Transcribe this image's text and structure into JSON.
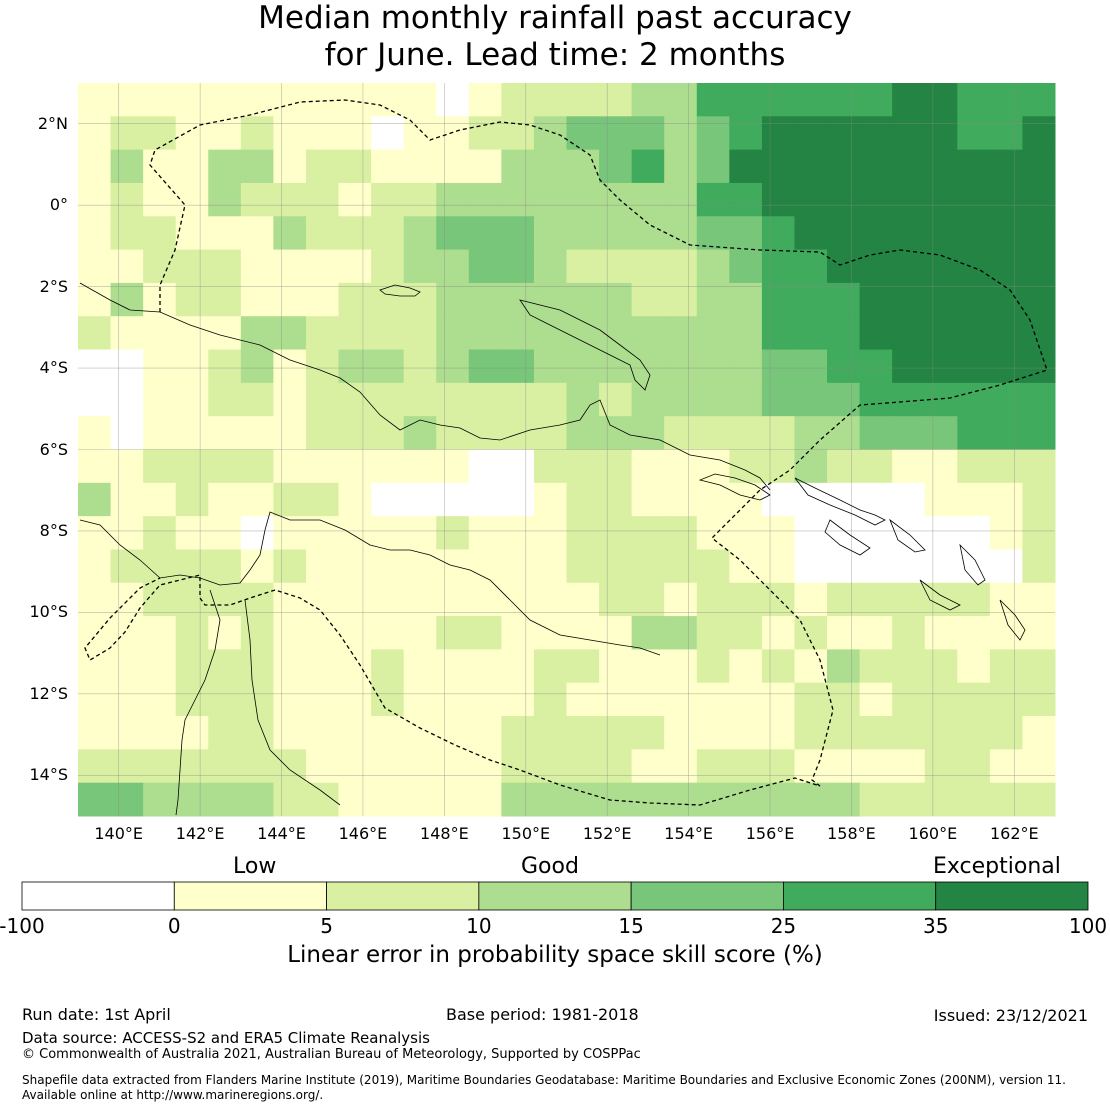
{
  "title_line1": "Median monthly rainfall past accuracy",
  "title_line2": "for June. Lead time: 2 months",
  "map": {
    "lon_range": [
      139,
      163
    ],
    "lat_range": [
      -15,
      3
    ],
    "lon_ticks": [
      "140°E",
      "142°E",
      "144°E",
      "146°E",
      "148°E",
      "150°E",
      "152°E",
      "154°E",
      "156°E",
      "158°E",
      "160°E",
      "162°E"
    ],
    "lat_ticks": [
      "2°N",
      "0°",
      "2°S",
      "4°S",
      "6°S",
      "8°S",
      "10°S",
      "12°S",
      "14°S"
    ],
    "grid": true,
    "cell_size_deg": 0.8,
    "skill_field_description_source": "rows north→south, columns west→east, values in % LEPS skill"
  },
  "legend": {
    "category_labels": [
      "Low",
      "Good",
      "Exceptional"
    ],
    "boundaries": [
      "-100",
      "0",
      "5",
      "10",
      "15",
      "25",
      "35",
      "100"
    ],
    "colors": [
      "#ffffff",
      "#ffffcc",
      "#d9f0a3",
      "#addd8e",
      "#78c679",
      "#41ab5d",
      "#238443"
    ],
    "title": "Linear error in probability space skill score (%)"
  },
  "footer": {
    "run_date": "Run date: 1st April",
    "base_period": "Base period: 1981-2018",
    "issued": "Issued: 23/12/2021",
    "data_source": "Data source: ACCESS-S2 and ERA5 Climate Reanalysis",
    "copyright": "© Commonwealth of Australia 2021, Australian Bureau of Meteorology, Supported by COSPPac",
    "shapefile_line1": "Shapefile data extracted from Flanders Marine Institute (2019), Maritime Boundaries Geodatabase: Maritime Boundaries and Exclusive Economic Zones (200NM), version 11.",
    "shapefile_line2": "Available online at http://www.marineregions.org/."
  }
}
